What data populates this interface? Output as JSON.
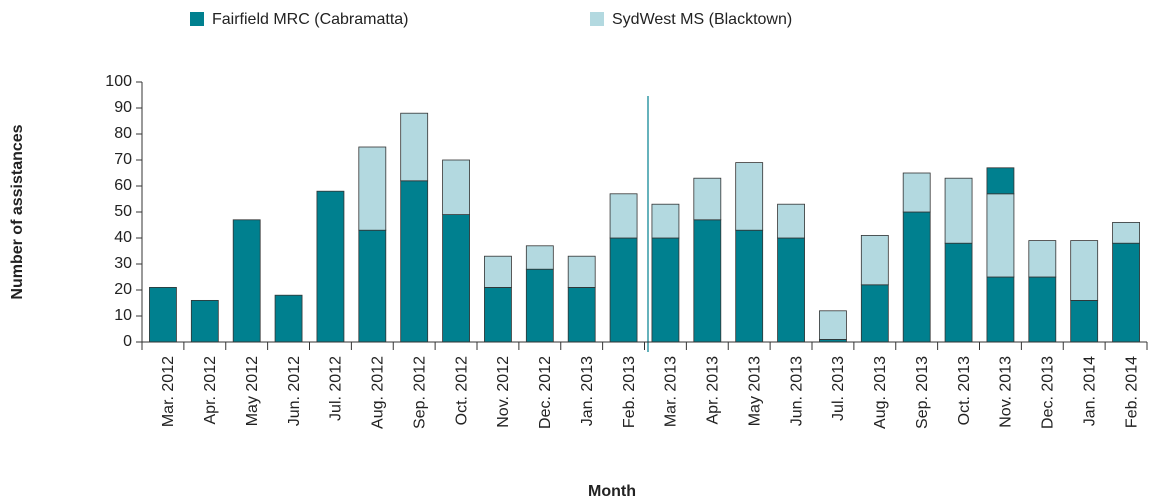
{
  "chart_data": {
    "type": "stacked_bar",
    "x_label": "Month",
    "y_label": "Number of assistances",
    "categories": [
      "Mar. 2012",
      "Apr. 2012",
      "May 2012",
      "Jun. 2012",
      "Jul. 2012",
      "Aug. 2012",
      "Sep. 2012",
      "Oct. 2012",
      "Nov. 2012",
      "Dec. 2012",
      "Jan. 2013",
      "Feb. 2013",
      "Mar. 2013",
      "Apr. 2013",
      "May 2013",
      "Jun. 2013",
      "Jul. 2013",
      "Aug. 2013",
      "Sep. 2013",
      "Oct. 2013",
      "Nov. 2013",
      "Dec. 2013",
      "Jan. 2014",
      "Feb. 2014"
    ],
    "series": [
      {
        "name": "Fairfield MRC (Cabramatta)",
        "color": "#00808f",
        "values": [
          21,
          16,
          47,
          18,
          58,
          43,
          62,
          49,
          21,
          28,
          21,
          40,
          40,
          47,
          43,
          40,
          1,
          22,
          50,
          38,
          25,
          25,
          16,
          38
        ]
      },
      {
        "name": "SydWest MS (Blacktown)",
        "color": "#b3d9e0",
        "values": [
          0,
          0,
          0,
          0,
          0,
          32,
          26,
          21,
          12,
          9,
          12,
          17,
          13,
          16,
          26,
          13,
          11,
          19,
          15,
          25,
          32,
          14,
          23,
          8
        ]
      },
      {
        "color": "#00808f",
        "values": [
          null,
          null,
          null,
          null,
          null,
          null,
          null,
          null,
          null,
          null,
          null,
          null,
          null,
          null,
          null,
          null,
          null,
          null,
          null,
          null,
          10,
          null,
          null,
          null
        ]
      }
    ],
    "ylim": [
      0,
      100
    ],
    "yticks": [
      0,
      10,
      20,
      30,
      40,
      50,
      60,
      70,
      80,
      90,
      100
    ]
  }
}
